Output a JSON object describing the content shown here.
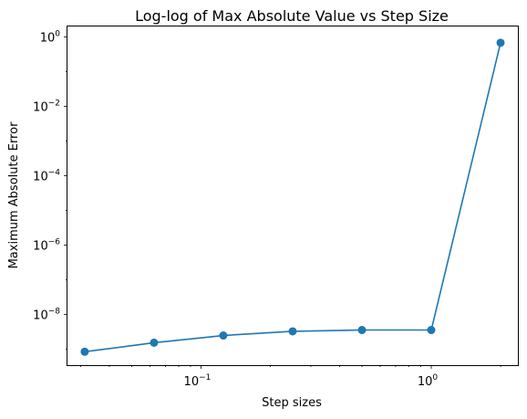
{
  "chart_data": {
    "type": "line",
    "title": "Log-log of Max Absolute Value vs Step Size",
    "xlabel": "Step sizes",
    "ylabel": "Maximum Absolute Error",
    "xscale": "log",
    "yscale": "log",
    "xlim": [
      0.0263,
      2.378
    ],
    "ylim": [
      3.5e-10,
      2.0
    ],
    "grid": false,
    "series": [
      {
        "color": "#1f77b4",
        "marker": "circle",
        "x": [
          0.03125,
          0.0625,
          0.125,
          0.25,
          0.5,
          1.0,
          2.0
        ],
        "y": [
          8.5e-10,
          1.55e-09,
          2.5e-09,
          3.3e-09,
          3.6e-09,
          3.6e-09,
          0.68
        ]
      }
    ],
    "xticks": [
      {
        "value": 0.1,
        "base": "10",
        "exp": "−1"
      },
      {
        "value": 1.0,
        "base": "10",
        "exp": "0"
      }
    ],
    "yticks": [
      {
        "value": 1e-08,
        "base": "10",
        "exp": "−8"
      },
      {
        "value": 1e-06,
        "base": "10",
        "exp": "−6"
      },
      {
        "value": 0.0001,
        "base": "10",
        "exp": "−4"
      },
      {
        "value": 0.01,
        "base": "10",
        "exp": "−2"
      },
      {
        "value": 1.0,
        "base": "10",
        "exp": "0"
      }
    ]
  }
}
